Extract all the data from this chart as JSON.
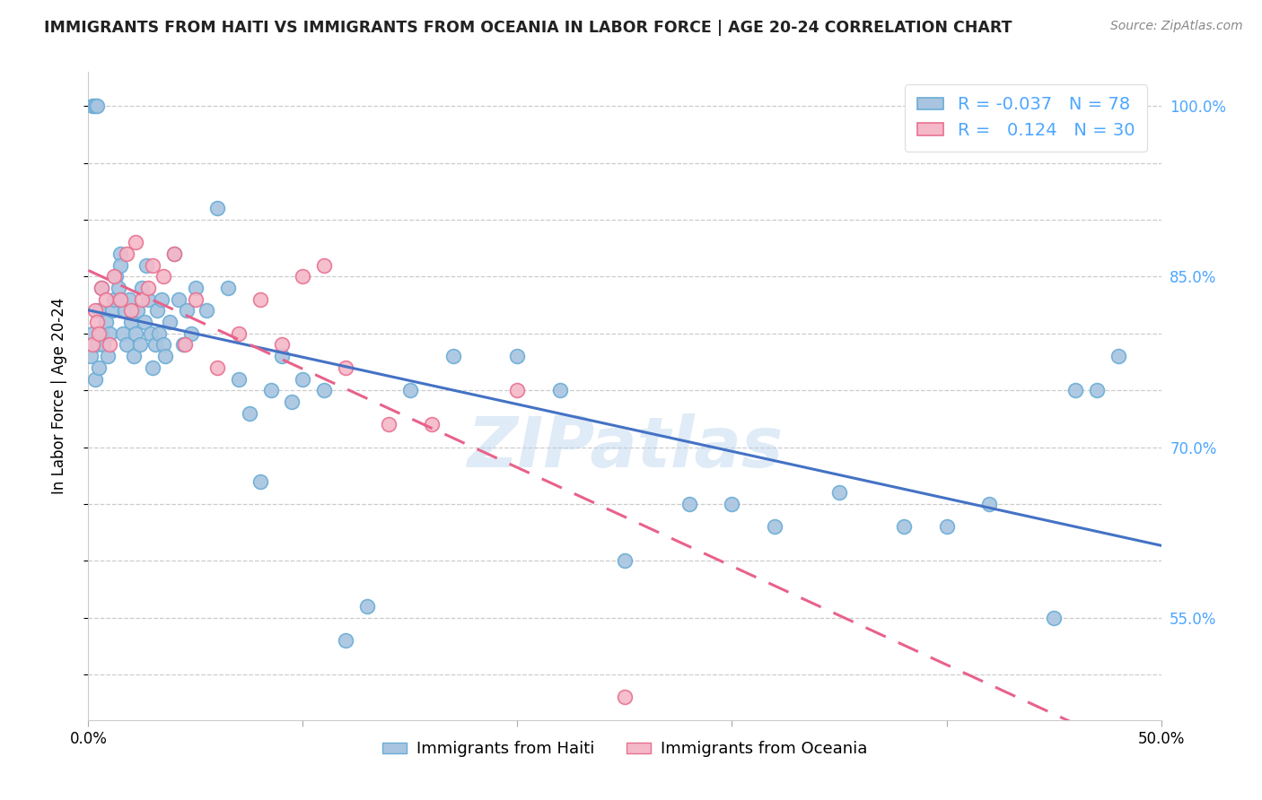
{
  "title": "IMMIGRANTS FROM HAITI VS IMMIGRANTS FROM OCEANIA IN LABOR FORCE | AGE 20-24 CORRELATION CHART",
  "source_text": "Source: ZipAtlas.com",
  "ylabel": "In Labor Force | Age 20-24",
  "xlim": [
    0.0,
    0.5
  ],
  "ylim": [
    0.46,
    1.03
  ],
  "x_ticks": [
    0.0,
    0.1,
    0.2,
    0.3,
    0.4,
    0.5
  ],
  "x_tick_labels": [
    "0.0%",
    "",
    "",
    "",
    "",
    "50.0%"
  ],
  "y_ticks": [
    0.5,
    0.55,
    0.6,
    0.65,
    0.7,
    0.75,
    0.8,
    0.85,
    0.9,
    0.95,
    1.0
  ],
  "y_tick_labels_right": [
    "",
    "55.0%",
    "",
    "",
    "70.0%",
    "",
    "",
    "85.0%",
    "",
    "",
    "100.0%"
  ],
  "haiti_color": "#a8c4e0",
  "haiti_edge_color": "#6aadd5",
  "oceania_color": "#f4b8c8",
  "oceania_edge_color": "#e87090",
  "haiti_R": -0.037,
  "haiti_N": 78,
  "oceania_R": 0.124,
  "oceania_N": 30,
  "legend_label_haiti": "Immigrants from Haiti",
  "legend_label_oceania": "Immigrants from Oceania",
  "watermark": "ZIPatlas",
  "haiti_scatter_x": [
    0.001,
    0.002,
    0.002,
    0.003,
    0.003,
    0.004,
    0.004,
    0.005,
    0.005,
    0.006,
    0.006,
    0.007,
    0.008,
    0.009,
    0.01,
    0.011,
    0.012,
    0.013,
    0.014,
    0.015,
    0.015,
    0.016,
    0.017,
    0.018,
    0.019,
    0.02,
    0.021,
    0.022,
    0.023,
    0.024,
    0.025,
    0.026,
    0.027,
    0.028,
    0.029,
    0.03,
    0.031,
    0.032,
    0.033,
    0.034,
    0.035,
    0.036,
    0.038,
    0.04,
    0.042,
    0.044,
    0.046,
    0.048,
    0.05,
    0.055,
    0.06,
    0.065,
    0.07,
    0.075,
    0.08,
    0.085,
    0.09,
    0.095,
    0.1,
    0.11,
    0.12,
    0.13,
    0.15,
    0.17,
    0.2,
    0.22,
    0.25,
    0.28,
    0.3,
    0.32,
    0.35,
    0.38,
    0.4,
    0.42,
    0.45,
    0.46,
    0.47,
    0.48
  ],
  "haiti_scatter_y": [
    0.78,
    0.8,
    1.0,
    0.76,
    1.0,
    0.79,
    1.0,
    0.77,
    0.82,
    0.8,
    0.84,
    0.79,
    0.81,
    0.78,
    0.8,
    0.82,
    0.83,
    0.85,
    0.84,
    0.87,
    0.86,
    0.8,
    0.82,
    0.79,
    0.83,
    0.81,
    0.78,
    0.8,
    0.82,
    0.79,
    0.84,
    0.81,
    0.86,
    0.83,
    0.8,
    0.77,
    0.79,
    0.82,
    0.8,
    0.83,
    0.79,
    0.78,
    0.81,
    0.87,
    0.83,
    0.79,
    0.82,
    0.8,
    0.84,
    0.82,
    0.91,
    0.84,
    0.76,
    0.73,
    0.67,
    0.75,
    0.78,
    0.74,
    0.76,
    0.75,
    0.53,
    0.56,
    0.75,
    0.78,
    0.78,
    0.75,
    0.6,
    0.65,
    0.65,
    0.63,
    0.66,
    0.63,
    0.63,
    0.65,
    0.55,
    0.75,
    0.75,
    0.78
  ],
  "oceania_scatter_x": [
    0.002,
    0.003,
    0.004,
    0.005,
    0.006,
    0.008,
    0.01,
    0.012,
    0.015,
    0.018,
    0.02,
    0.022,
    0.025,
    0.028,
    0.03,
    0.035,
    0.04,
    0.045,
    0.05,
    0.06,
    0.07,
    0.08,
    0.09,
    0.1,
    0.11,
    0.12,
    0.14,
    0.16,
    0.2,
    0.25
  ],
  "oceania_scatter_y": [
    0.79,
    0.82,
    0.81,
    0.8,
    0.84,
    0.83,
    0.79,
    0.85,
    0.83,
    0.87,
    0.82,
    0.88,
    0.83,
    0.84,
    0.86,
    0.85,
    0.87,
    0.79,
    0.83,
    0.77,
    0.8,
    0.83,
    0.79,
    0.85,
    0.86,
    0.77,
    0.72,
    0.72,
    0.75,
    0.48
  ],
  "grid_color": "#cccccc",
  "line_blue_color": "#4472c4",
  "line_pink_color": "#e8628a",
  "title_color": "#222222",
  "right_axis_color": "#4da6ff",
  "legend_R_color": "#4da6ff"
}
